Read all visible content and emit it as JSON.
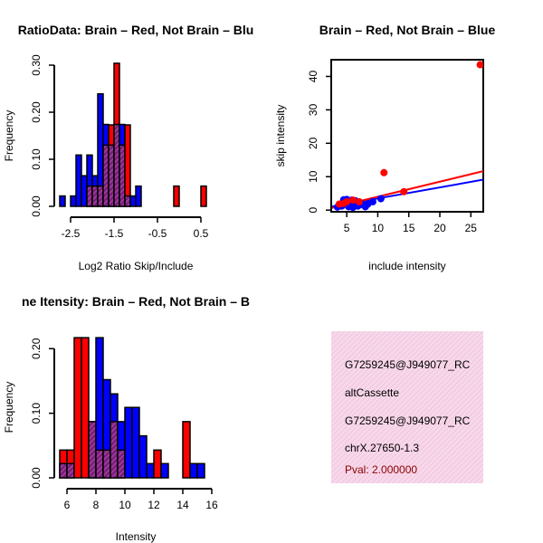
{
  "colors": {
    "red": "#ff0000",
    "blue": "#0000ff",
    "overlap_hatch": "#b24bb2",
    "overlap_fill": "#7a1f7a",
    "panel_bg": "#f7d8ea",
    "pval_text": "#8b0000"
  },
  "chart_data": [
    {
      "type": "bar",
      "subtype": "histogram-overlay",
      "title": "RatioData: Brain – Red, Not Brain – Blu",
      "xlabel": "Log2 Ratio Skip/Include",
      "ylabel": "Frequency",
      "xlim": [
        -2.75,
        0.75
      ],
      "ylim": [
        0,
        0.3
      ],
      "xticks": [
        -2.5,
        -1.5,
        -0.5,
        0.5
      ],
      "xtick_labels": [
        "-2.5",
        "-1.5",
        "-0.5",
        "0.5"
      ],
      "yticks": [
        0,
        0.1,
        0.2,
        0.3
      ],
      "ytick_labels": [
        "0.00",
        "0.10",
        "0.20",
        "0.30"
      ],
      "bin_width": 0.125,
      "bins_start": [
        -2.75,
        -2.625,
        -2.5,
        -2.375,
        -2.25,
        -2.125,
        -2.0,
        -1.875,
        -1.75,
        -1.625,
        -1.5,
        -1.375,
        -1.25,
        -1.125,
        -1.0,
        -0.875,
        -0.75,
        -0.625,
        -0.5,
        -0.375,
        -0.25,
        -0.125,
        0.0,
        0.125,
        0.25,
        0.375,
        0.5,
        0.625
      ],
      "series": [
        {
          "name": "Brain",
          "color": "red",
          "values": [
            0,
            0,
            0,
            0,
            0,
            0.043,
            0.043,
            0.043,
            0.13,
            0.173,
            0.304,
            0.13,
            0.173,
            0,
            0,
            0,
            0,
            0,
            0,
            0,
            0,
            0.043,
            0,
            0,
            0,
            0,
            0.043,
            0
          ]
        },
        {
          "name": "Not Brain",
          "color": "blue",
          "values": [
            0.022,
            0,
            0.022,
            0.109,
            0.065,
            0.109,
            0.065,
            0.239,
            0.174,
            0.13,
            0.174,
            0.174,
            0.022,
            0.022,
            0.043,
            0,
            0,
            0,
            0,
            0,
            0,
            0,
            0,
            0,
            0,
            0,
            0,
            0
          ]
        }
      ]
    },
    {
      "type": "scatter",
      "title": "Brain – Red, Not Brain – Blue",
      "xlabel": "include intensity",
      "ylabel": "skip intensity",
      "xlim": [
        2.5,
        27
      ],
      "ylim": [
        -0.5,
        45
      ],
      "xticks": [
        5,
        10,
        15,
        20,
        25
      ],
      "xtick_labels": [
        "5",
        "10",
        "15",
        "20",
        "25"
      ],
      "yticks": [
        0,
        10,
        20,
        30,
        40
      ],
      "ytick_labels": [
        "0",
        "10",
        "20",
        "30",
        "40"
      ],
      "series": [
        {
          "name": "Brain",
          "color": "red",
          "points": [
            [
              26.5,
              43.5
            ],
            [
              11.0,
              11.2
            ],
            [
              14.2,
              5.5
            ],
            [
              6.0,
              3.0
            ],
            [
              5.0,
              2.5
            ],
            [
              4.5,
              2.0
            ],
            [
              7.0,
              2.5
            ],
            [
              3.8,
              1.8
            ]
          ],
          "fit": {
            "intercept": -0.5,
            "slope": 0.45
          }
        },
        {
          "name": "Not Brain",
          "color": "blue",
          "points": [
            [
              4.2,
              1.2
            ],
            [
              4.8,
              2.5
            ],
            [
              5.0,
              3.2
            ],
            [
              5.3,
              1.0
            ],
            [
              5.5,
              2.2
            ],
            [
              5.8,
              3.0
            ],
            [
              6.1,
              1.5
            ],
            [
              6.4,
              2.8
            ],
            [
              6.8,
              1.2
            ],
            [
              7.2,
              2.2
            ],
            [
              7.6,
              1.6
            ],
            [
              8.0,
              1.0
            ],
            [
              8.4,
              1.8
            ],
            [
              4.5,
              3.1
            ],
            [
              6.0,
              0.8
            ],
            [
              10.5,
              3.4
            ],
            [
              9.2,
              2.5
            ],
            [
              3.5,
              0.9
            ]
          ],
          "fit": {
            "intercept": 0.2,
            "slope": 0.33
          }
        }
      ]
    },
    {
      "type": "bar",
      "subtype": "histogram-overlay",
      "title": "ne Itensity: Brain – Red, Not Brain – B",
      "xlabel": "Intensity",
      "ylabel": "Frequency",
      "xlim": [
        5.5,
        16
      ],
      "ylim": [
        0,
        0.22
      ],
      "xticks": [
        6,
        8,
        10,
        12,
        14,
        16
      ],
      "xtick_labels": [
        "6",
        "8",
        "10",
        "12",
        "14",
        "16"
      ],
      "yticks": [
        0,
        0.1,
        0.2
      ],
      "ytick_labels": [
        "0.00",
        "0.10",
        "0.20"
      ],
      "bin_width": 0.5,
      "bins_start": [
        5.5,
        6.0,
        6.5,
        7.0,
        7.5,
        8.0,
        8.5,
        9.0,
        9.5,
        10.0,
        10.5,
        11.0,
        11.5,
        12.0,
        12.5,
        13.0,
        13.5,
        14.0,
        14.5,
        15.0
      ],
      "series": [
        {
          "name": "Brain",
          "color": "red",
          "values": [
            0.043,
            0.043,
            0.217,
            0.217,
            0.087,
            0.043,
            0.043,
            0.087,
            0.043,
            0,
            0,
            0,
            0,
            0.043,
            0,
            0,
            0,
            0.087,
            0,
            0
          ]
        },
        {
          "name": "Not Brain",
          "color": "blue",
          "values": [
            0.022,
            0.022,
            0,
            0,
            0.087,
            0.217,
            0.152,
            0.13,
            0.087,
            0.109,
            0.109,
            0.065,
            0.022,
            0,
            0.022,
            0,
            0,
            0,
            0.022,
            0.022
          ]
        }
      ]
    }
  ],
  "info_panel": {
    "lines": [
      "G7259245@J949077_RC",
      "altCassette",
      "G7259245@J949077_RC",
      "chrX.27650-1.3"
    ],
    "pval": "Pval: 2.000000"
  }
}
